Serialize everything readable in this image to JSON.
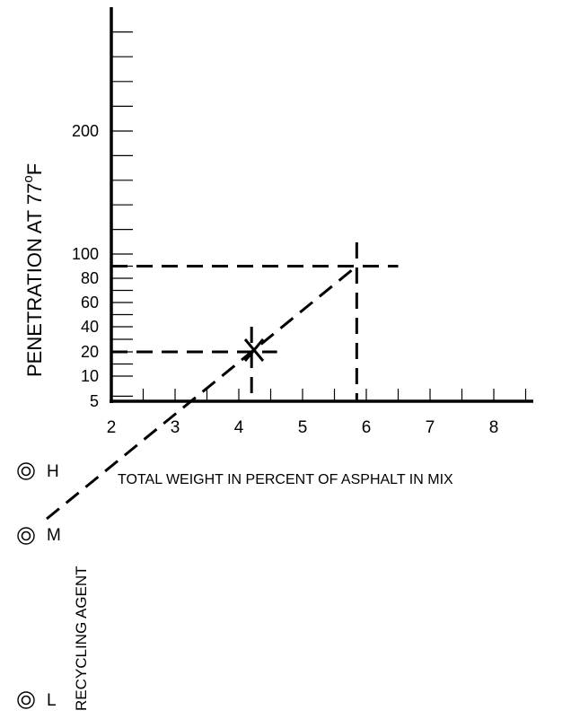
{
  "chart_data": {
    "type": "line",
    "xlabel": "TOTAL WEIGHT IN PERCENT OF ASPHALT IN MIX",
    "ylabel": "PENETRATION AT 77",
    "ylabel_superscript": "o",
    "ylabel_unit": "F",
    "x_ticks": [
      "2",
      "3",
      "4",
      "5",
      "6",
      "7",
      "8"
    ],
    "x_minor_per_major": 2,
    "xlim": [
      2,
      8.5
    ],
    "y_ticks": [
      {
        "label": "5",
        "value": 5
      },
      {
        "label": "10",
        "value": 10
      },
      {
        "label": "20",
        "value": 20
      },
      {
        "label": "40",
        "value": 40
      },
      {
        "label": "60",
        "value": 60
      },
      {
        "label": "80",
        "value": 80
      },
      {
        "label": "100",
        "value": 100
      },
      {
        "label": "200",
        "value": 200
      }
    ],
    "y_minor": [
      6,
      15,
      30,
      50,
      70,
      90,
      120,
      140,
      160,
      180,
      220,
      240,
      260,
      280
    ],
    "ylim": [
      5,
      300
    ],
    "recycling_agent": {
      "title": "RECYCLING AGENT",
      "levels": [
        "H",
        "M",
        "L"
      ]
    },
    "construction": {
      "target_penetration": 90,
      "target_asphalt_percent": 5.85,
      "marked_point": {
        "x": 4.2,
        "y": 20,
        "label": "X"
      },
      "agent_line": [
        {
          "x": 1.3,
          "y": 0
        },
        {
          "x": 5.85,
          "y": 90
        }
      ]
    }
  }
}
